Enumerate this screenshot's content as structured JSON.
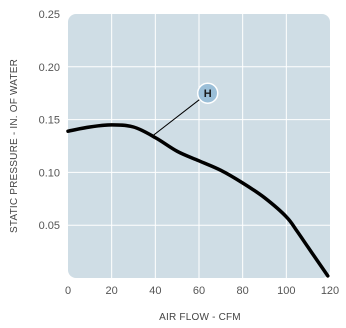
{
  "chart_data": {
    "type": "line",
    "xlabel": "AIR FLOW - CFM",
    "ylabel": "STATIC PRESSURE - IN. OF WATER",
    "xlim": [
      0,
      120
    ],
    "ylim": [
      0,
      0.25
    ],
    "x_ticks": [
      0,
      20,
      40,
      60,
      80,
      100,
      120
    ],
    "y_ticks": [
      0.05,
      0.1,
      0.15,
      0.2,
      0.25
    ],
    "x_tick_labels": [
      "0",
      "20",
      "40",
      "60",
      "80",
      "100",
      "120"
    ],
    "y_tick_labels": [
      "0.05",
      "0.10",
      "0.15",
      "0.20",
      "0.25"
    ],
    "grid": true,
    "colors": {
      "plot_background": "#cfdde5",
      "grid": "#ffffff",
      "line": "#000000",
      "marker_fill": "#9bbfd8"
    },
    "series": [
      {
        "x": [
          0,
          10,
          20,
          30,
          40,
          50,
          60,
          70,
          80,
          90,
          100,
          105,
          110,
          115,
          119
        ],
        "y": [
          0.139,
          0.143,
          0.145,
          0.143,
          0.133,
          0.12,
          0.111,
          0.102,
          0.09,
          0.076,
          0.058,
          0.044,
          0.029,
          0.014,
          0.002
        ]
      }
    ],
    "annotations": [
      {
        "text": "H",
        "x": 39,
        "y": 0.135,
        "label_x": 64,
        "label_y": 0.175
      }
    ]
  }
}
